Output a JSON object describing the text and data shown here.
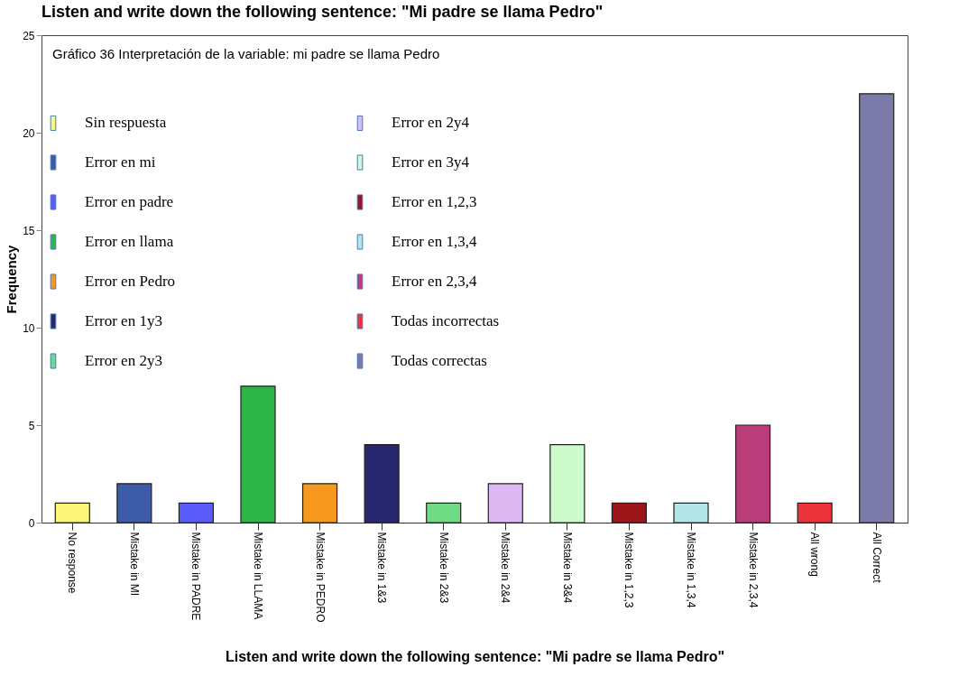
{
  "chart_data": {
    "type": "bar",
    "title": "Listen and write down the following sentence: \"Mi padre se llama Pedro\"",
    "xlabel": "Listen and write down the following sentence: \"Mi padre se llama Pedro\"",
    "ylabel": "Frequency",
    "annotations": [
      "Gráfico 36 Interpretación de la variable: mi padre se llama Pedro"
    ],
    "categories": [
      "No response",
      "Mistake in MI",
      "Mistake in PADRE",
      "Mistake in LLAMA",
      "Mistake in PEDRO",
      "Mistake in 1&3",
      "Mistake in 2&3",
      "Mistake in 2&4",
      "Mistake in 3&4",
      "Mistake in 1,2,3",
      "Mistake in 1,3,4",
      "Mistake in 2,3,4",
      "All wrong",
      "All Correct"
    ],
    "stacked": true,
    "ylim": [
      0,
      25
    ],
    "yticks": [
      0,
      5,
      10,
      15,
      20,
      25
    ],
    "grid": false,
    "legend": "top left",
    "series": [
      {
        "name": "Sin respuesta",
        "color": "#fbf57a",
        "values": [
          1,
          null,
          null,
          null,
          null,
          null,
          null,
          null,
          null,
          null,
          null,
          null,
          null,
          null
        ]
      },
      {
        "name": "Error en mi",
        "color": "#3e5ba8",
        "values": [
          null,
          2,
          null,
          null,
          null,
          null,
          null,
          null,
          null,
          null,
          null,
          null,
          null,
          null
        ]
      },
      {
        "name": "Error en padre",
        "color": "#5a5cfb",
        "values": [
          null,
          null,
          1,
          null,
          null,
          null,
          null,
          null,
          null,
          null,
          null,
          null,
          null,
          null
        ]
      },
      {
        "name": "Error en llama",
        "color": "#2eb548",
        "values": [
          null,
          null,
          null,
          7,
          null,
          null,
          null,
          null,
          null,
          null,
          null,
          null,
          null,
          null
        ]
      },
      {
        "name": "Error en Pedro",
        "color": "#f7981f",
        "values": [
          null,
          null,
          null,
          null,
          2,
          null,
          null,
          null,
          null,
          null,
          null,
          null,
          null,
          null
        ]
      },
      {
        "name": "Error en 1y3",
        "color": "#27286f",
        "values": [
          null,
          null,
          null,
          null,
          null,
          4,
          null,
          null,
          null,
          null,
          null,
          null,
          null,
          null
        ]
      },
      {
        "name": "Error en 2y3",
        "color": "#6fdb85",
        "values": [
          null,
          null,
          null,
          null,
          null,
          null,
          1,
          null,
          null,
          null,
          null,
          null,
          null,
          null
        ]
      },
      {
        "name": "Error en 2y4",
        "color": "#dcb9f0",
        "values": [
          null,
          null,
          null,
          null,
          null,
          null,
          null,
          2,
          null,
          null,
          null,
          null,
          null,
          null
        ]
      },
      {
        "name": "Error en 3y4",
        "color": "#ccfccb",
        "values": [
          null,
          null,
          null,
          null,
          null,
          null,
          null,
          null,
          4,
          null,
          null,
          null,
          null,
          null
        ]
      },
      {
        "name": "Error en 1,2,3",
        "color": "#9c1519",
        "values": [
          null,
          null,
          null,
          null,
          null,
          null,
          null,
          null,
          null,
          1,
          null,
          null,
          null,
          null
        ]
      },
      {
        "name": "Error en 1,3,4",
        "color": "#b4e6e8",
        "values": [
          null,
          null,
          null,
          null,
          null,
          null,
          null,
          null,
          null,
          null,
          1,
          null,
          null,
          null
        ]
      },
      {
        "name": "Error en 2,3,4",
        "color": "#ba3c78",
        "values": [
          null,
          null,
          null,
          null,
          null,
          null,
          null,
          null,
          null,
          null,
          null,
          5,
          null,
          null
        ]
      },
      {
        "name": "Todas incorrectas",
        "color": "#ec333a",
        "values": [
          null,
          null,
          null,
          null,
          null,
          null,
          null,
          null,
          null,
          null,
          null,
          null,
          1,
          null
        ]
      },
      {
        "name": "Todas correctas",
        "color": "#7b7aa8",
        "values": [
          null,
          null,
          null,
          null,
          null,
          null,
          null,
          null,
          null,
          null,
          null,
          null,
          null,
          22
        ]
      }
    ]
  }
}
